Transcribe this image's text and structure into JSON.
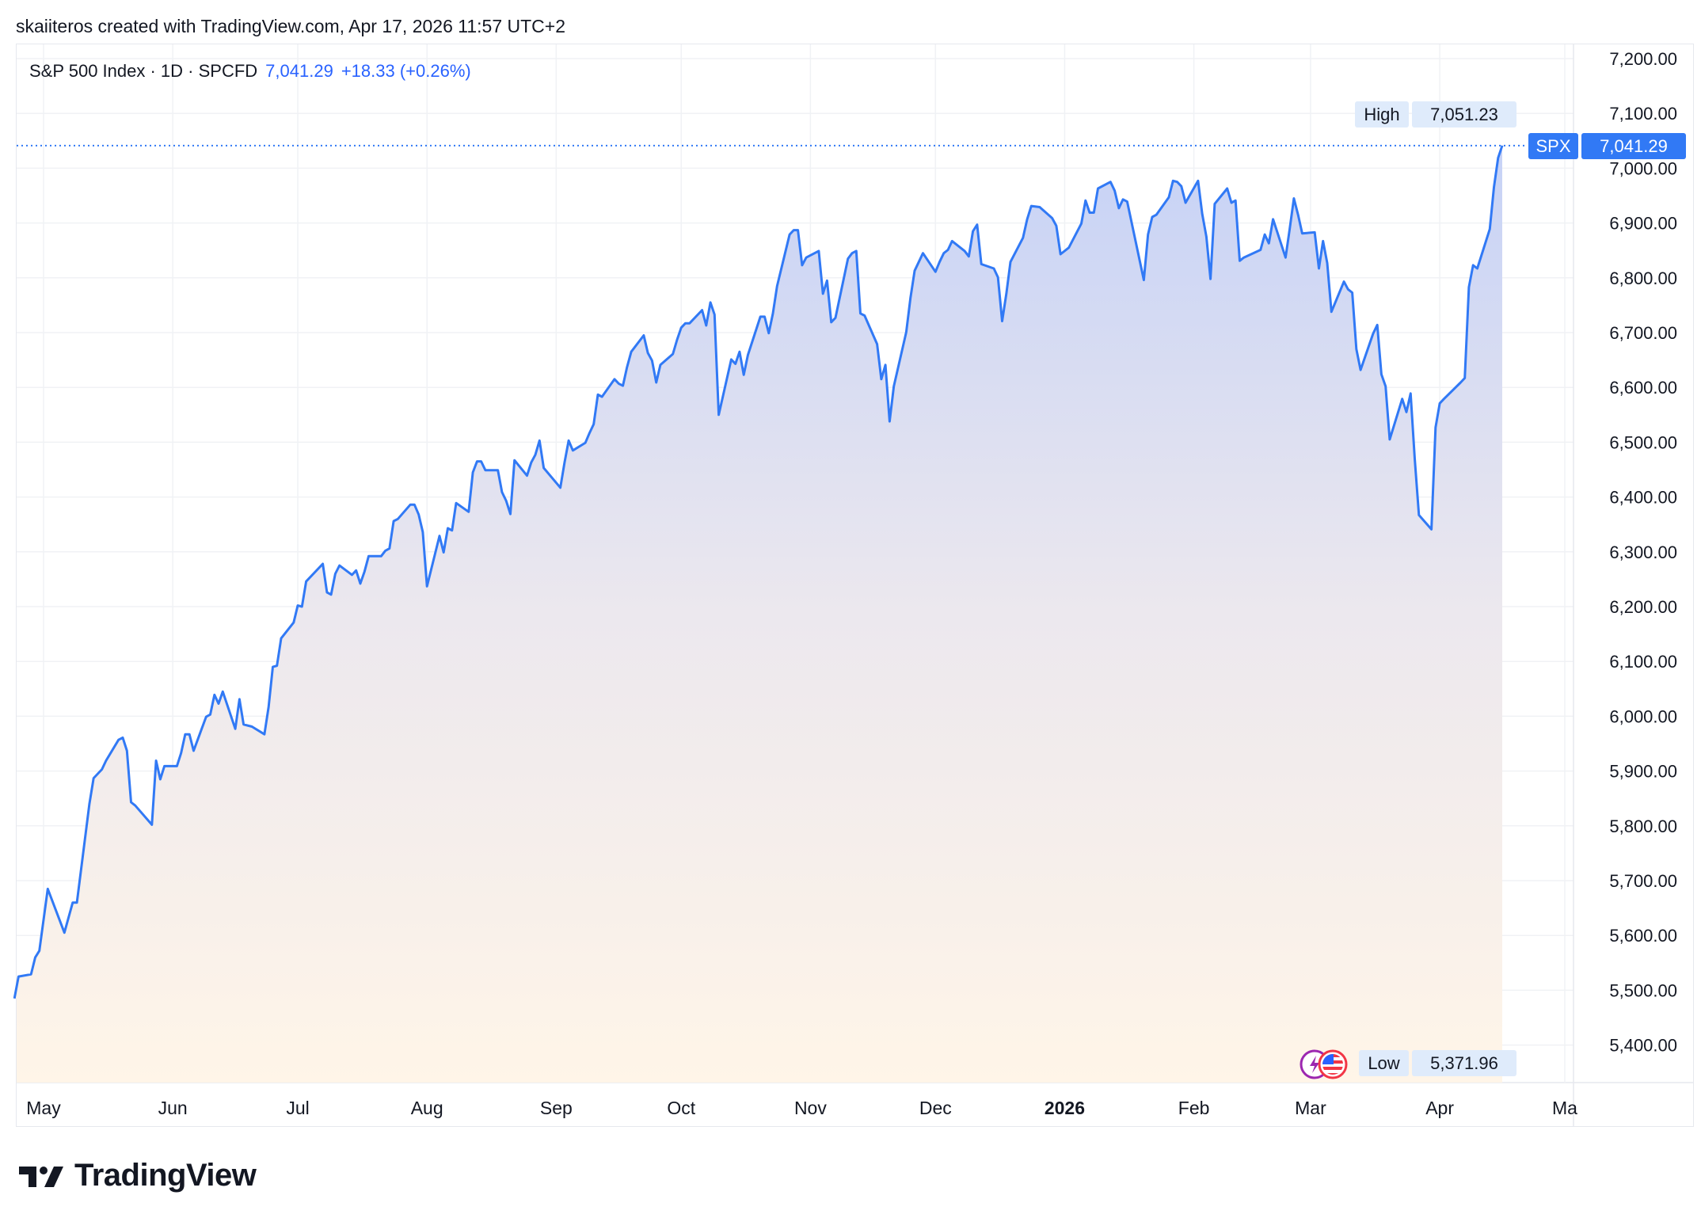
{
  "credit": "skaiiteros created with TradingView.com, Apr 17, 2026 11:57 UTC+2",
  "legend": {
    "symbol": "S&P 500 Index · 1D · SPCFD",
    "last": "7,041.29",
    "change": "+18.33 (+0.26%)"
  },
  "tags": {
    "high_label": "High",
    "high_value": "7,051.23",
    "last_label": "SPX",
    "last_value": "7,041.29",
    "low_label": "Low",
    "low_value": "5,371.96"
  },
  "logo": "TradingView",
  "colors": {
    "line": "#3179f5",
    "fill_top": "#c9d4f7",
    "fill_bottom": "#fff4e6",
    "grid": "#f0f2f5"
  },
  "icons": [
    "lightning-event-icon",
    "us-flag-icon"
  ],
  "chart_data": {
    "type": "area",
    "title": "",
    "xlabel": "",
    "ylabel": "",
    "ylim": [
      5400,
      7200
    ],
    "xlim": [
      "2025-04-24",
      "2026-05-05"
    ],
    "grid": true,
    "y_ticks": [
      "5,400.00",
      "5,500.00",
      "5,600.00",
      "5,700.00",
      "5,800.00",
      "5,900.00",
      "6,000.00",
      "6,100.00",
      "6,200.00",
      "6,300.00",
      "6,400.00",
      "6,500.00",
      "6,600.00",
      "6,700.00",
      "6,800.00",
      "6,900.00",
      "7,000.00",
      "7,100.00",
      "7,200.00"
    ],
    "x_ticks": [
      {
        "date": "2025-05-01",
        "label": "May"
      },
      {
        "date": "2025-06-01",
        "label": "Jun"
      },
      {
        "date": "2025-07-01",
        "label": "Jul"
      },
      {
        "date": "2025-08-01",
        "label": "Aug"
      },
      {
        "date": "2025-09-01",
        "label": "Sep"
      },
      {
        "date": "2025-10-01",
        "label": "Oct"
      },
      {
        "date": "2025-11-01",
        "label": "Nov"
      },
      {
        "date": "2025-12-01",
        "label": "Dec"
      },
      {
        "date": "2026-01-01",
        "label": "2026",
        "bold": true
      },
      {
        "date": "2026-02-01",
        "label": "Feb"
      },
      {
        "date": "2026-03-01",
        "label": "Mar"
      },
      {
        "date": "2026-04-01",
        "label": "Apr"
      },
      {
        "date": "2026-05-01",
        "label": "Ma"
      }
    ],
    "last_price": 7041.29,
    "series": [
      {
        "points": [
          [
            "2025-04-24",
            5485
          ],
          [
            "2025-04-25",
            5525
          ],
          [
            "2025-04-28",
            5529
          ],
          [
            "2025-04-29",
            5560
          ],
          [
            "2025-04-30",
            5572
          ],
          [
            "2025-05-02",
            5685
          ],
          [
            "2025-05-06",
            5605
          ],
          [
            "2025-05-08",
            5660
          ],
          [
            "2025-05-09",
            5660
          ],
          [
            "2025-05-12",
            5840
          ],
          [
            "2025-05-13",
            5887
          ],
          [
            "2025-05-15",
            5903
          ],
          [
            "2025-05-16",
            5919
          ],
          [
            "2025-05-19",
            5957
          ],
          [
            "2025-05-20",
            5961
          ],
          [
            "2025-05-21",
            5937
          ],
          [
            "2025-05-22",
            5843
          ],
          [
            "2025-05-23",
            5837
          ],
          [
            "2025-05-27",
            5802
          ],
          [
            "2025-05-28",
            5919
          ],
          [
            "2025-05-29",
            5885
          ],
          [
            "2025-05-30",
            5909
          ],
          [
            "2025-06-02",
            5909
          ],
          [
            "2025-06-03",
            5933
          ],
          [
            "2025-06-04",
            5967
          ],
          [
            "2025-06-05",
            5967
          ],
          [
            "2025-06-06",
            5937
          ],
          [
            "2025-06-09",
            5999
          ],
          [
            "2025-06-10",
            6003
          ],
          [
            "2025-06-11",
            6039
          ],
          [
            "2025-06-12",
            6023
          ],
          [
            "2025-06-13",
            6045
          ],
          [
            "2025-06-16",
            5977
          ],
          [
            "2025-06-17",
            6031
          ],
          [
            "2025-06-18",
            5985
          ],
          [
            "2025-06-20",
            5981
          ],
          [
            "2025-06-23",
            5967
          ],
          [
            "2025-06-24",
            6017
          ],
          [
            "2025-06-25",
            6090
          ],
          [
            "2025-06-26",
            6092
          ],
          [
            "2025-06-27",
            6142
          ],
          [
            "2025-06-30",
            6171
          ],
          [
            "2025-07-01",
            6202
          ],
          [
            "2025-07-02",
            6200
          ],
          [
            "2025-07-03",
            6246
          ],
          [
            "2025-07-07",
            6278
          ],
          [
            "2025-07-08",
            6226
          ],
          [
            "2025-07-09",
            6222
          ],
          [
            "2025-07-10",
            6260
          ],
          [
            "2025-07-11",
            6275
          ],
          [
            "2025-07-14",
            6258
          ],
          [
            "2025-07-15",
            6266
          ],
          [
            "2025-07-16",
            6242
          ],
          [
            "2025-07-17",
            6264
          ],
          [
            "2025-07-18",
            6292
          ],
          [
            "2025-07-21",
            6292
          ],
          [
            "2025-07-22",
            6302
          ],
          [
            "2025-07-23",
            6306
          ],
          [
            "2025-07-24",
            6356
          ],
          [
            "2025-07-25",
            6360
          ],
          [
            "2025-07-28",
            6386
          ],
          [
            "2025-07-29",
            6386
          ],
          [
            "2025-07-30",
            6368
          ],
          [
            "2025-07-31",
            6336
          ],
          [
            "2025-08-01",
            6237
          ],
          [
            "2025-08-04",
            6329
          ],
          [
            "2025-08-05",
            6299
          ],
          [
            "2025-08-06",
            6343
          ],
          [
            "2025-08-07",
            6339
          ],
          [
            "2025-08-08",
            6389
          ],
          [
            "2025-08-11",
            6373
          ],
          [
            "2025-08-12",
            6445
          ],
          [
            "2025-08-13",
            6465
          ],
          [
            "2025-08-14",
            6465
          ],
          [
            "2025-08-15",
            6449
          ],
          [
            "2025-08-18",
            6449
          ],
          [
            "2025-08-19",
            6409
          ],
          [
            "2025-08-20",
            6393
          ],
          [
            "2025-08-21",
            6369
          ],
          [
            "2025-08-22",
            6467
          ],
          [
            "2025-08-25",
            6439
          ],
          [
            "2025-08-26",
            6463
          ],
          [
            "2025-08-27",
            6477
          ],
          [
            "2025-08-28",
            6503
          ],
          [
            "2025-08-29",
            6453
          ],
          [
            "2025-09-02",
            6417
          ],
          [
            "2025-09-03",
            6463
          ],
          [
            "2025-09-04",
            6503
          ],
          [
            "2025-09-05",
            6485
          ],
          [
            "2025-09-08",
            6499
          ],
          [
            "2025-09-09",
            6517
          ],
          [
            "2025-09-10",
            6533
          ],
          [
            "2025-09-11",
            6587
          ],
          [
            "2025-09-12",
            6583
          ],
          [
            "2025-09-15",
            6615
          ],
          [
            "2025-09-16",
            6607
          ],
          [
            "2025-09-17",
            6603
          ],
          [
            "2025-09-18",
            6637
          ],
          [
            "2025-09-19",
            6665
          ],
          [
            "2025-09-22",
            6695
          ],
          [
            "2025-09-23",
            6663
          ],
          [
            "2025-09-24",
            6649
          ],
          [
            "2025-09-25",
            6609
          ],
          [
            "2025-09-26",
            6641
          ],
          [
            "2025-09-29",
            6661
          ],
          [
            "2025-09-30",
            6687
          ],
          [
            "2025-10-01",
            6709
          ],
          [
            "2025-10-02",
            6717
          ],
          [
            "2025-10-03",
            6717
          ],
          [
            "2025-10-06",
            6741
          ],
          [
            "2025-10-07",
            6713
          ],
          [
            "2025-10-08",
            6755
          ],
          [
            "2025-10-09",
            6733
          ],
          [
            "2025-10-10",
            6550
          ],
          [
            "2025-10-13",
            6651
          ],
          [
            "2025-10-14",
            6643
          ],
          [
            "2025-10-15",
            6665
          ],
          [
            "2025-10-16",
            6623
          ],
          [
            "2025-10-17",
            6659
          ],
          [
            "2025-10-20",
            6729
          ],
          [
            "2025-10-21",
            6729
          ],
          [
            "2025-10-22",
            6699
          ],
          [
            "2025-10-23",
            6735
          ],
          [
            "2025-10-24",
            6785
          ],
          [
            "2025-10-27",
            6879
          ],
          [
            "2025-10-28",
            6887
          ],
          [
            "2025-10-29",
            6887
          ],
          [
            "2025-10-30",
            6823
          ],
          [
            "2025-10-31",
            6837
          ],
          [
            "2025-11-03",
            6849
          ],
          [
            "2025-11-04",
            6771
          ],
          [
            "2025-11-05",
            6795
          ],
          [
            "2025-11-06",
            6719
          ],
          [
            "2025-11-07",
            6727
          ],
          [
            "2025-11-10",
            6835
          ],
          [
            "2025-11-11",
            6845
          ],
          [
            "2025-11-12",
            6849
          ],
          [
            "2025-11-13",
            6735
          ],
          [
            "2025-11-14",
            6731
          ],
          [
            "2025-11-17",
            6679
          ],
          [
            "2025-11-18",
            6615
          ],
          [
            "2025-11-19",
            6641
          ],
          [
            "2025-11-20",
            6538
          ],
          [
            "2025-11-21",
            6602
          ],
          [
            "2025-11-24",
            6701
          ],
          [
            "2025-11-25",
            6763
          ],
          [
            "2025-11-26",
            6813
          ],
          [
            "2025-11-28",
            6845
          ],
          [
            "2025-12-01",
            6811
          ],
          [
            "2025-12-02",
            6829
          ],
          [
            "2025-12-03",
            6845
          ],
          [
            "2025-12-04",
            6851
          ],
          [
            "2025-12-05",
            6867
          ],
          [
            "2025-12-08",
            6849
          ],
          [
            "2025-12-09",
            6839
          ],
          [
            "2025-12-10",
            6885
          ],
          [
            "2025-12-11",
            6897
          ],
          [
            "2025-12-12",
            6825
          ],
          [
            "2025-12-15",
            6817
          ],
          [
            "2025-12-16",
            6801
          ],
          [
            "2025-12-17",
            6721
          ],
          [
            "2025-12-18",
            6771
          ],
          [
            "2025-12-19",
            6829
          ],
          [
            "2025-12-22",
            6873
          ],
          [
            "2025-12-23",
            6907
          ],
          [
            "2025-12-24",
            6931
          ],
          [
            "2025-12-26",
            6929
          ],
          [
            "2025-12-29",
            6909
          ],
          [
            "2025-12-30",
            6895
          ],
          [
            "2025-12-31",
            6843
          ],
          [
            "2026-01-02",
            6855
          ],
          [
            "2026-01-05",
            6899
          ],
          [
            "2026-01-06",
            6941
          ],
          [
            "2026-01-07",
            6919
          ],
          [
            "2026-01-08",
            6919
          ],
          [
            "2026-01-09",
            6963
          ],
          [
            "2026-01-12",
            6975
          ],
          [
            "2026-01-13",
            6959
          ],
          [
            "2026-01-14",
            6927
          ],
          [
            "2026-01-15",
            6943
          ],
          [
            "2026-01-16",
            6939
          ],
          [
            "2026-01-20",
            6796
          ],
          [
            "2026-01-21",
            6879
          ],
          [
            "2026-01-22",
            6911
          ],
          [
            "2026-01-23",
            6915
          ],
          [
            "2026-01-26",
            6947
          ],
          [
            "2026-01-27",
            6977
          ],
          [
            "2026-01-28",
            6975
          ],
          [
            "2026-01-29",
            6967
          ],
          [
            "2026-01-30",
            6937
          ],
          [
            "2026-02-02",
            6977
          ],
          [
            "2026-02-03",
            6917
          ],
          [
            "2026-02-04",
            6875
          ],
          [
            "2026-02-05",
            6798
          ],
          [
            "2026-02-06",
            6935
          ],
          [
            "2026-02-09",
            6963
          ],
          [
            "2026-02-10",
            6937
          ],
          [
            "2026-02-11",
            6941
          ],
          [
            "2026-02-12",
            6831
          ],
          [
            "2026-02-13",
            6837
          ],
          [
            "2026-02-17",
            6851
          ],
          [
            "2026-02-18",
            6879
          ],
          [
            "2026-02-19",
            6863
          ],
          [
            "2026-02-20",
            6907
          ],
          [
            "2026-02-23",
            6837
          ],
          [
            "2026-02-24",
            6889
          ],
          [
            "2026-02-25",
            6945
          ],
          [
            "2026-02-26",
            6915
          ],
          [
            "2026-02-27",
            6881
          ],
          [
            "2026-03-02",
            6883
          ],
          [
            "2026-03-03",
            6817
          ],
          [
            "2026-03-04",
            6867
          ],
          [
            "2026-03-05",
            6827
          ],
          [
            "2026-03-06",
            6738
          ],
          [
            "2026-03-09",
            6793
          ],
          [
            "2026-03-10",
            6779
          ],
          [
            "2026-03-11",
            6773
          ],
          [
            "2026-03-12",
            6670
          ],
          [
            "2026-03-13",
            6632
          ],
          [
            "2026-03-16",
            6698
          ],
          [
            "2026-03-17",
            6714
          ],
          [
            "2026-03-18",
            6624
          ],
          [
            "2026-03-19",
            6602
          ],
          [
            "2026-03-20",
            6505
          ],
          [
            "2026-03-23",
            6579
          ],
          [
            "2026-03-24",
            6555
          ],
          [
            "2026-03-25",
            6589
          ],
          [
            "2026-03-26",
            6470
          ],
          [
            "2026-03-27",
            6367
          ],
          [
            "2026-03-30",
            6341
          ],
          [
            "2026-03-31",
            6527
          ],
          [
            "2026-04-01",
            6571
          ],
          [
            "2026-04-02",
            6579
          ],
          [
            "2026-04-06",
            6609
          ],
          [
            "2026-04-07",
            6617
          ],
          [
            "2026-04-08",
            6783
          ],
          [
            "2026-04-09",
            6823
          ],
          [
            "2026-04-10",
            6817
          ],
          [
            "2026-04-13",
            6889
          ],
          [
            "2026-04-14",
            6965
          ],
          [
            "2026-04-15",
            7019
          ],
          [
            "2026-04-16",
            7041.29
          ]
        ]
      }
    ]
  }
}
